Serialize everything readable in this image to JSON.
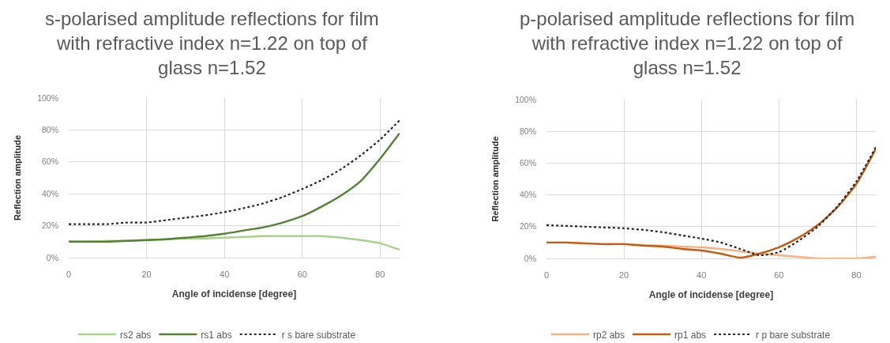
{
  "chart_data": [
    {
      "type": "line",
      "title": "s-polarised amplitude reflections for film with refractive index n=1.22 on top of glass n=1.52",
      "xlabel": "Angle of incidense [degree]",
      "ylabel": "Reflection amplitude",
      "x": [
        0,
        5,
        10,
        15,
        20,
        25,
        30,
        35,
        40,
        45,
        50,
        55,
        60,
        65,
        70,
        75,
        80,
        85
      ],
      "xlim": [
        0,
        85
      ],
      "xticks": [
        0,
        20,
        40,
        60,
        80
      ],
      "ylim": [
        0,
        100
      ],
      "yticks": [
        {
          "value": 0,
          "label": "0%"
        },
        {
          "value": 20,
          "label": "20%"
        },
        {
          "value": 40,
          "label": "40%"
        },
        {
          "value": 60,
          "label": "60%"
        },
        {
          "value": 80,
          "label": "80%"
        },
        {
          "value": 100,
          "label": "100%"
        }
      ],
      "grid": true,
      "legend": "bottom",
      "series": [
        {
          "name": "rs2 abs",
          "color": "#a9d18e",
          "line_style": "solid",
          "values": [
            10,
            10,
            10.5,
            10.5,
            11,
            11.5,
            12,
            12,
            12.5,
            13,
            13.5,
            13.5,
            13.5,
            13.5,
            12.5,
            11,
            9,
            5
          ]
        },
        {
          "name": "rs1 abs",
          "color": "#548235",
          "line_style": "solid",
          "values": [
            10,
            10,
            10,
            10.5,
            11,
            11.5,
            12.5,
            13.5,
            15,
            17,
            19,
            22,
            26,
            32,
            39,
            48,
            62,
            78
          ]
        },
        {
          "name": "r s bare substrate",
          "color": "#262626",
          "line_style": "dotted",
          "values": [
            21,
            21,
            21,
            22,
            22,
            23.5,
            25,
            26.5,
            28.5,
            31,
            34,
            38,
            43,
            48.5,
            55.5,
            64,
            74,
            86
          ]
        }
      ]
    },
    {
      "type": "line",
      "title": "p-polarised amplitude reflections for film with refractive index n=1.22 on top of glass n=1.52",
      "xlabel": "Angle of incidense [degree]",
      "ylabel": "Reflection amplitude",
      "x": [
        0,
        5,
        10,
        15,
        20,
        25,
        30,
        35,
        40,
        45,
        50,
        55,
        60,
        65,
        70,
        75,
        80,
        85
      ],
      "xlim": [
        0,
        85
      ],
      "xticks": [
        0,
        20,
        40,
        60,
        80
      ],
      "ylim": [
        0,
        100
      ],
      "yticks": [
        {
          "value": 0,
          "label": "0%"
        },
        {
          "value": 20,
          "label": "20%"
        },
        {
          "value": 40,
          "label": "40%"
        },
        {
          "value": 60,
          "label": "60%"
        },
        {
          "value": 80,
          "label": "80%"
        },
        {
          "value": 100,
          "label": "100%"
        }
      ],
      "grid": true,
      "legend": "bottom",
      "series": [
        {
          "name": "rp2 abs",
          "color": "#f4b183",
          "line_style": "solid",
          "values": [
            10,
            10,
            9.5,
            9,
            9,
            8.5,
            8,
            7.5,
            7,
            6,
            4.5,
            3,
            2,
            1,
            0,
            0,
            0,
            1
          ]
        },
        {
          "name": "rp1 abs",
          "color": "#c55a11",
          "line_style": "solid",
          "values": [
            10,
            10,
            9.5,
            9,
            9,
            8,
            7.5,
            6,
            5,
            3,
            0.5,
            3,
            7,
            13,
            21,
            32,
            47,
            69
          ]
        },
        {
          "name": "r p bare substrate",
          "color": "#262626",
          "line_style": "dotted",
          "values": [
            21,
            20.5,
            20,
            19.5,
            19,
            18,
            16.5,
            14.5,
            12.5,
            10,
            6,
            2,
            4,
            11,
            20,
            32.5,
            48.5,
            70
          ]
        }
      ]
    }
  ]
}
